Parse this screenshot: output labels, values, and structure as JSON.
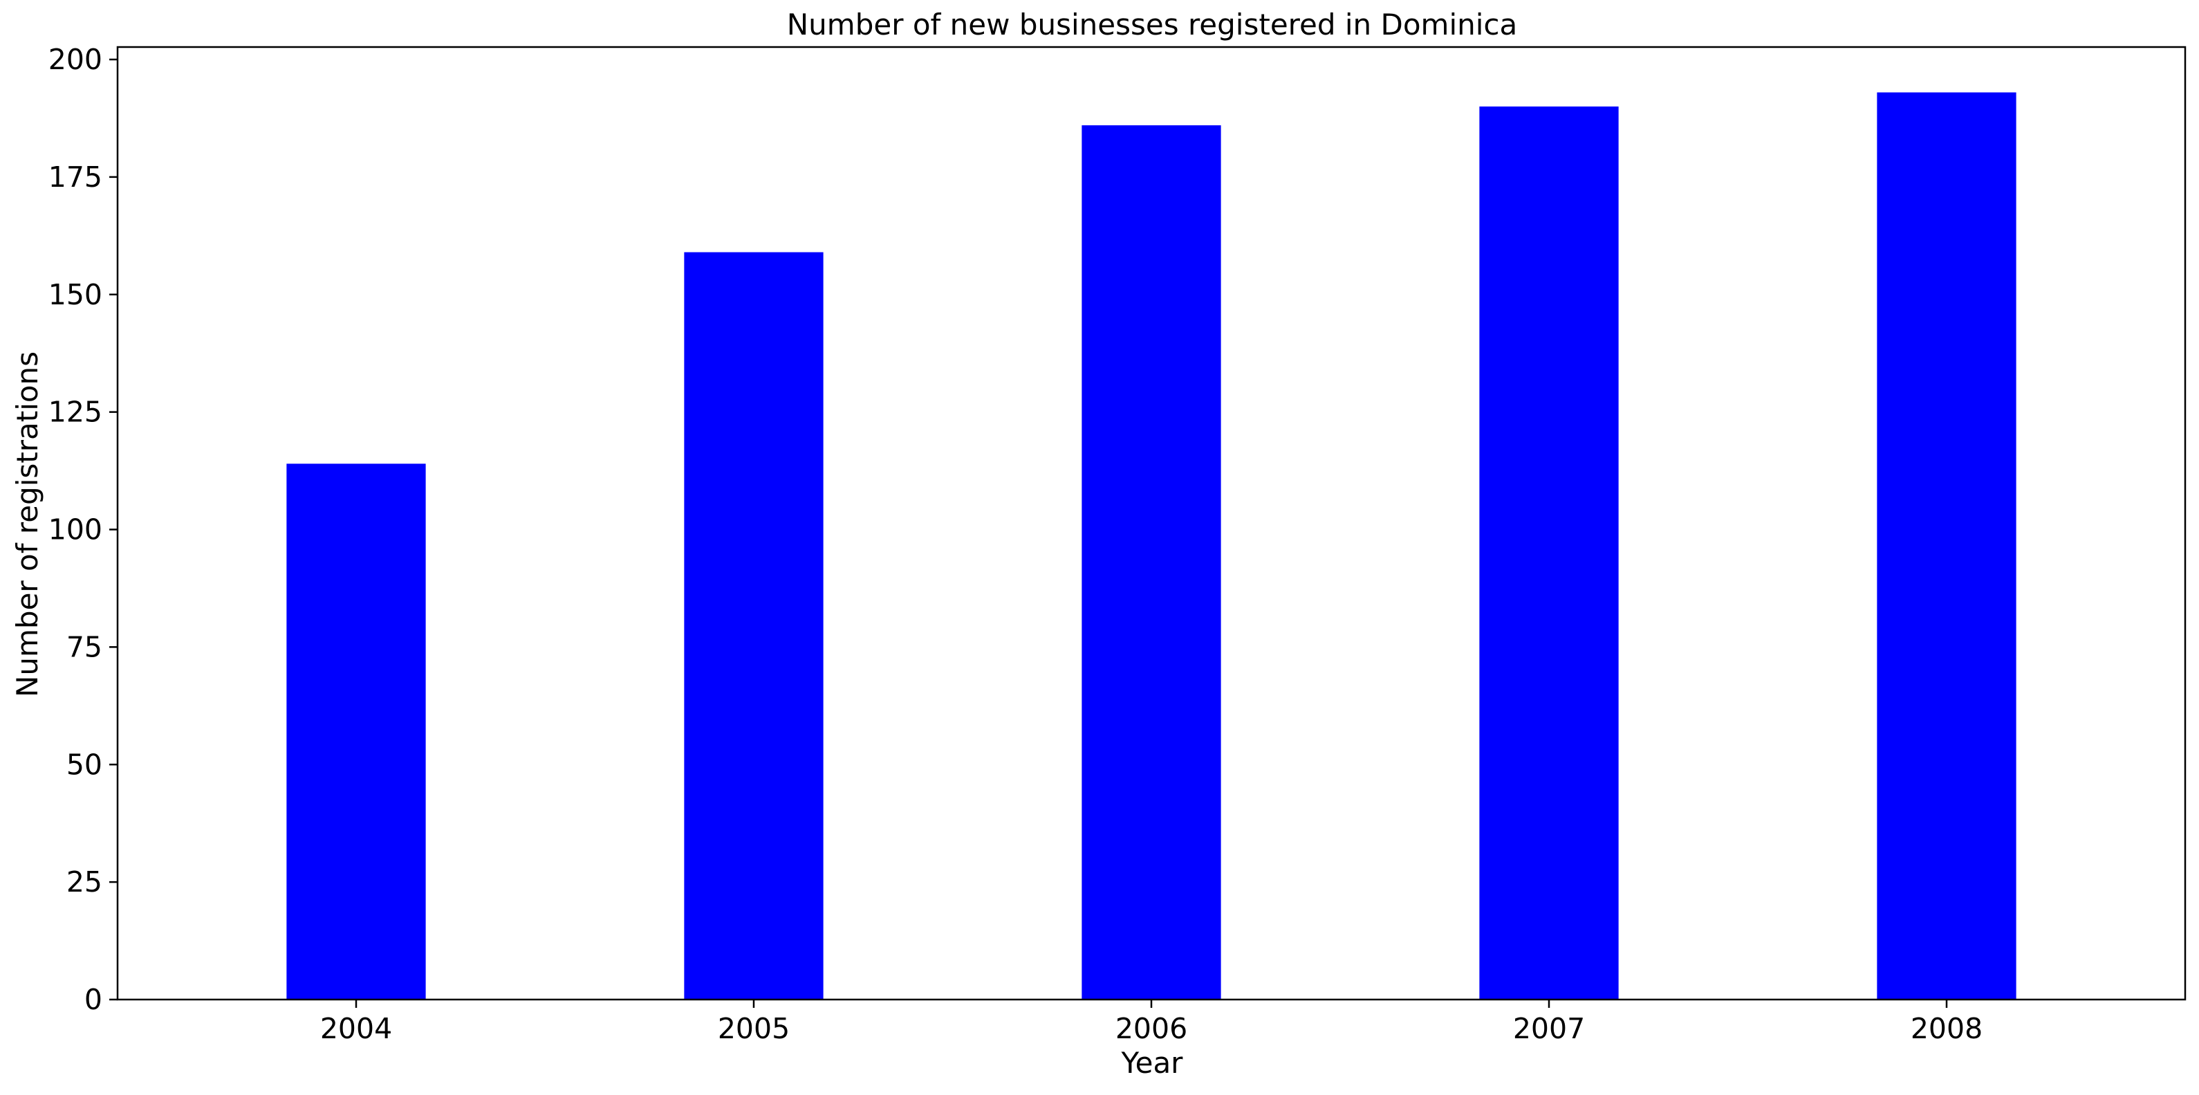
{
  "chart_data": {
    "type": "bar",
    "title": "Number of new businesses registered in Dominica",
    "xlabel": "Year",
    "ylabel": "Number of registrations",
    "categories": [
      "2004",
      "2005",
      "2006",
      "2007",
      "2008"
    ],
    "values": [
      114,
      159,
      186,
      190,
      193
    ],
    "ylim": [
      0,
      202.65
    ],
    "yticks": [
      0,
      25,
      50,
      75,
      100,
      125,
      150,
      175,
      200
    ],
    "bar_color": "#0000ff",
    "grid": false,
    "legend": "none"
  }
}
